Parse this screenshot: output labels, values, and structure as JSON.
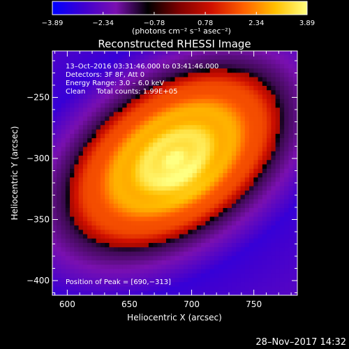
{
  "chart_data": {
    "type": "heatmap",
    "title": "Reconstructed RHESSI Image",
    "xlabel": "Heliocentric X (arcsec)",
    "ylabel": "Heliocentric Y (arcsec)",
    "xlim": [
      588,
      785
    ],
    "ylim": [
      -412,
      -212
    ],
    "x_ticks": [
      600,
      650,
      700,
      750
    ],
    "y_ticks": [
      -250,
      -300,
      -350,
      -400
    ],
    "y_tick_labels": [
      "−250",
      "−300",
      "−350",
      "−400"
    ],
    "colorbar": {
      "min": -3.89,
      "max": 3.89,
      "ticks": [
        -3.89,
        -2.34,
        -0.78,
        0.78,
        2.34,
        3.89
      ],
      "tick_labels": [
        "−3.89",
        "−2.34",
        "−0.78",
        "0.78",
        "2.34",
        "3.89"
      ],
      "unit_label": "(photons cm⁻² s⁻¹ asec⁻²)",
      "colors": [
        "#0000ff",
        "#4000d0",
        "#7a10b0",
        "#000000",
        "#800000",
        "#d01000",
        "#ff6000",
        "#ffc000",
        "#ffff80"
      ]
    },
    "annotations": {
      "time_range": "13–Oct–2016 03:31:46.000 to 03:41:46.000",
      "detectors": "Detectors: 3F 8F, Att 0",
      "energy": "Energy Range: 3.0 – 6.0 keV",
      "clean": "Clean     Total counts: 1.99E+05",
      "peak": "Position of Peak = [690,−313]"
    },
    "peak": {
      "x": 690,
      "y": -313
    },
    "source_axis_angle_deg": 35,
    "footer_date": "28–Nov–2017 14:32"
  }
}
